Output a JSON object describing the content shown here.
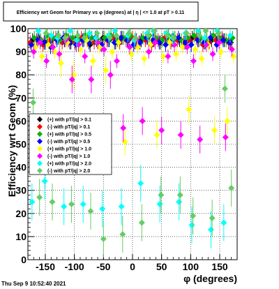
{
  "title": "Efficiency wrt Geom for Primary vs φ (degrees) at | η | <= 1.0 at pT > 0.11",
  "footer": "Thu Sep  9 10:52:40 2021",
  "chart_data": {
    "type": "scatter",
    "xlabel": "φ (degrees)",
    "ylabel": "Efficiency wrt Geom (%)",
    "xlim": [
      -180,
      180
    ],
    "ylim": [
      0,
      100
    ],
    "grid": true,
    "legend_placement": "middle-left",
    "x_ticks": [
      -150,
      -100,
      -50,
      0,
      50,
      100,
      150
    ],
    "y_ticks": [
      0,
      10,
      20,
      30,
      40,
      50,
      60,
      70,
      80,
      90,
      100
    ],
    "series": [
      {
        "name": "(+) with pT/|q| > 0.1",
        "color": "#000000",
        "x": [
          -172,
          -161,
          -150,
          -139,
          -128,
          -117,
          -106,
          -95,
          -84,
          -73,
          -62,
          -51,
          -40,
          -29,
          -18,
          -7,
          4,
          15,
          26,
          37,
          48,
          59,
          70,
          81,
          92,
          103,
          114,
          125,
          136,
          147,
          158,
          169
        ],
        "y": [
          95,
          96,
          94,
          95,
          96,
          95,
          94,
          96,
          95,
          93,
          95,
          96,
          95,
          94,
          96,
          95,
          94,
          95,
          96,
          95,
          94,
          96,
          95,
          95,
          94,
          96,
          95,
          94,
          95,
          96,
          95,
          94
        ]
      },
      {
        "name": "(-) with pT/|q| > 0.1",
        "color": "#ff0000",
        "x": [
          -176,
          -165,
          -154,
          -143,
          -132,
          -121,
          -110,
          -99,
          -88,
          -77,
          -66,
          -55,
          -44,
          -33,
          -22,
          -11,
          0,
          11,
          22,
          33,
          44,
          55,
          66,
          77,
          88,
          99,
          110,
          121,
          132,
          143,
          154,
          165
        ],
        "y": [
          94,
          95,
          93,
          95,
          96,
          94,
          95,
          94,
          96,
          95,
          94,
          93,
          95,
          96,
          94,
          95,
          96,
          94,
          95,
          93,
          95,
          96,
          94,
          95,
          94,
          95,
          96,
          93,
          94,
          95,
          96,
          94
        ]
      },
      {
        "name": "(+) with pT/|q| > 0.5",
        "color": "#00b400",
        "x": [
          -169,
          -158,
          -147,
          -136,
          -125,
          -114,
          -103,
          -92,
          -81,
          -70,
          -59,
          -48,
          -37,
          -26,
          -15,
          -4,
          7,
          18,
          29,
          40,
          51,
          62,
          73,
          84,
          95,
          106,
          117,
          128,
          139,
          150,
          161,
          172
        ],
        "y": [
          96,
          95,
          97,
          96,
          95,
          97,
          96,
          95,
          97,
          96,
          95,
          96,
          97,
          95,
          96,
          97,
          95,
          96,
          97,
          96,
          95,
          97,
          96,
          95,
          96,
          97,
          96,
          95,
          97,
          96,
          95,
          96
        ]
      },
      {
        "name": "(-) with pT/|q| > 0.5",
        "color": "#0000ff",
        "x": [
          -174,
          -163,
          -152,
          -141,
          -130,
          -119,
          -108,
          -97,
          -86,
          -75,
          -64,
          -53,
          -42,
          -31,
          -20,
          -9,
          2,
          13,
          24,
          35,
          46,
          57,
          68,
          79,
          90,
          101,
          112,
          123,
          134,
          145,
          156,
          167
        ],
        "y": [
          93,
          95,
          94,
          92,
          95,
          96,
          94,
          93,
          95,
          94,
          96,
          93,
          95,
          94,
          96,
          95,
          93,
          94,
          96,
          95,
          94,
          93,
          95,
          96,
          94,
          93,
          95,
          94,
          96,
          93,
          95,
          94
        ]
      },
      {
        "name": "(+) with pT/|q| > 1.0",
        "color": "#ffff00",
        "x": [
          -167,
          -156,
          -145,
          -134,
          -123,
          -112,
          -101,
          -90,
          -79,
          -68,
          -57,
          -46,
          -35,
          -24,
          -13,
          -2,
          9,
          20,
          31,
          42,
          53,
          64,
          75,
          86,
          97,
          108,
          119,
          130,
          141,
          152,
          163,
          174
        ],
        "y": [
          92,
          88,
          93,
          90,
          85,
          94,
          80,
          91,
          95,
          86,
          92,
          82,
          90,
          94,
          51,
          89,
          92,
          87,
          93,
          54,
          88,
          94,
          89,
          92,
          65,
          91,
          87,
          93,
          56,
          90,
          60,
          88
        ]
      },
      {
        "name": "(-) with pT/|q| > 1.0",
        "color": "#ff00ff",
        "x": [
          -170,
          -159,
          -148,
          -137,
          -126,
          -115,
          -104,
          -93,
          -82,
          -71,
          -60,
          -49,
          -38,
          -27,
          -16,
          -5,
          6,
          17,
          28,
          39,
          50,
          61,
          72,
          83,
          94,
          105,
          116,
          127,
          138,
          149,
          160,
          171
        ],
        "y": [
          90,
          94,
          86,
          92,
          89,
          95,
          78,
          93,
          88,
          78,
          94,
          91,
          80,
          86,
          57,
          92,
          95,
          60,
          90,
          94,
          56,
          88,
          93,
          54,
          92,
          86,
          52,
          93,
          89,
          94,
          53,
          91
        ]
      },
      {
        "name": "(+) with pT/|q| > 2.0",
        "color": "#00ffff",
        "x": [
          -173,
          -162,
          -151,
          -140,
          -129,
          -118,
          -107,
          -96,
          -85,
          -74,
          -63,
          -52,
          -41,
          -30,
          -19,
          -8,
          3,
          14,
          25,
          36,
          47,
          58,
          69,
          80,
          91,
          102,
          113,
          124,
          135,
          146,
          157,
          168
        ],
        "y": [
          25,
          99,
          34,
          97,
          96,
          23,
          99,
          95,
          24,
          98,
          96,
          22,
          97,
          99,
          23,
          97,
          95,
          33,
          98,
          99,
          24,
          98,
          96,
          25,
          98,
          15,
          99,
          96,
          13,
          99,
          16,
          97
        ]
      },
      {
        "name": "(-) with pT/|q| > 2.0",
        "color": "#66cc66",
        "x": [
          -171,
          -160,
          -149,
          -138,
          -127,
          -116,
          -105,
          -94,
          -83,
          -72,
          -61,
          -50,
          -39,
          -28,
          -17,
          -6,
          5,
          16,
          27,
          38,
          49,
          60,
          71,
          82,
          93,
          104,
          115,
          126,
          137,
          148,
          159,
          170
        ],
        "y": [
          68,
          27,
          98,
          25,
          97,
          96,
          24,
          97,
          96,
          21,
          98,
          9,
          96,
          97,
          11,
          98,
          96,
          16,
          97,
          99,
          28,
          97,
          96,
          28,
          98,
          19,
          97,
          99,
          18,
          98,
          74,
          31
        ]
      }
    ]
  }
}
